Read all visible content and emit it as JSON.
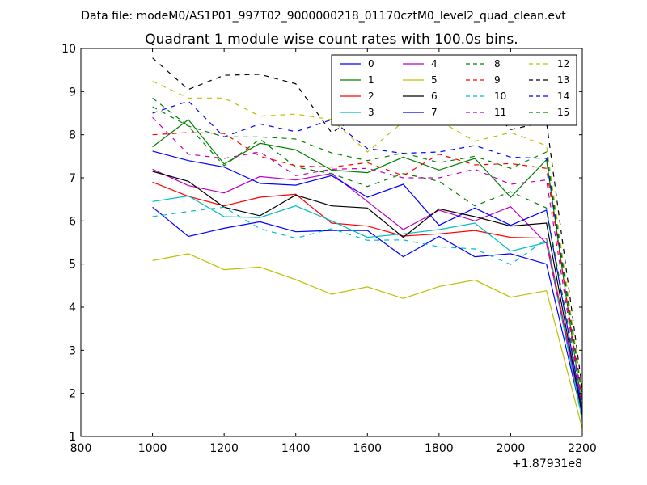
{
  "chart_data": {
    "type": "line",
    "suptitle": "Data file: modeM0/AS1P01_997T02_9000000218_01170cztM0_level2_quad_clean.evt",
    "title": "Quadrant 1 module wise count rates with 100.0s bins.",
    "xlabel": "",
    "ylabel": "",
    "x_offset_label": "+1.87931e8",
    "xlim": [
      800,
      2200
    ],
    "ylim": [
      1,
      10
    ],
    "xticks": [
      800,
      1000,
      1200,
      1400,
      1600,
      1800,
      2000,
      2200
    ],
    "yticks": [
      1,
      2,
      3,
      4,
      5,
      6,
      7,
      8,
      9,
      10
    ],
    "x": [
      1000,
      1100,
      1200,
      1300,
      1400,
      1500,
      1600,
      1700,
      1800,
      1900,
      2000,
      2100,
      2200
    ],
    "legend_position": "top-right",
    "series": [
      {
        "name": "0",
        "color": "#0000ff",
        "dash": "solid",
        "values": [
          6.32,
          5.64,
          5.83,
          5.98,
          5.75,
          5.78,
          5.78,
          5.17,
          5.64,
          5.17,
          5.24,
          5.0,
          1.45
        ]
      },
      {
        "name": "1",
        "color": "#008000",
        "dash": "solid",
        "values": [
          7.72,
          8.35,
          7.32,
          7.8,
          7.65,
          7.18,
          7.12,
          7.48,
          7.18,
          7.45,
          6.55,
          7.42,
          1.65
        ]
      },
      {
        "name": "2",
        "color": "#ff0000",
        "dash": "solid",
        "values": [
          6.9,
          6.57,
          6.35,
          6.55,
          6.62,
          5.95,
          5.88,
          5.65,
          5.7,
          5.78,
          5.62,
          5.6,
          1.52
        ]
      },
      {
        "name": "3",
        "color": "#00bfbf",
        "dash": "solid",
        "values": [
          6.45,
          6.58,
          6.1,
          6.08,
          6.35,
          6.0,
          5.62,
          5.7,
          5.8,
          5.95,
          5.3,
          5.5,
          1.4
        ]
      },
      {
        "name": "4",
        "color": "#bf00bf",
        "dash": "solid",
        "values": [
          7.2,
          6.82,
          6.65,
          7.03,
          6.95,
          7.1,
          6.45,
          5.8,
          6.25,
          6.0,
          6.33,
          5.48,
          1.55
        ]
      },
      {
        "name": "5",
        "color": "#bfbf00",
        "dash": "solid",
        "values": [
          5.08,
          5.24,
          4.87,
          4.93,
          4.64,
          4.3,
          4.47,
          4.2,
          4.48,
          4.63,
          4.23,
          4.38,
          1.18
        ]
      },
      {
        "name": "6",
        "color": "#000000",
        "dash": "solid",
        "values": [
          7.15,
          6.92,
          6.32,
          6.12,
          6.6,
          6.35,
          6.3,
          5.62,
          6.28,
          6.1,
          5.88,
          5.95,
          1.5
        ]
      },
      {
        "name": "7",
        "color": "#0000ff",
        "dash": "solid",
        "values": [
          7.62,
          7.4,
          7.25,
          6.87,
          6.83,
          7.05,
          6.55,
          6.85,
          5.9,
          6.3,
          5.9,
          6.25,
          1.6
        ]
      },
      {
        "name": "8",
        "color": "#008000",
        "dash": "dashed",
        "values": [
          8.85,
          8.2,
          7.28,
          7.9,
          7.25,
          7.1,
          6.8,
          7.1,
          6.92,
          6.35,
          6.68,
          6.3,
          1.78
        ]
      },
      {
        "name": "9",
        "color": "#ff0000",
        "dash": "dashed",
        "values": [
          8.0,
          8.05,
          8.03,
          7.5,
          7.28,
          7.25,
          7.35,
          7.05,
          7.55,
          7.3,
          7.33,
          7.22,
          1.82
        ]
      },
      {
        "name": "10",
        "color": "#00bfbf",
        "dash": "dashed",
        "values": [
          6.1,
          6.22,
          6.32,
          5.82,
          5.6,
          5.82,
          5.55,
          5.56,
          5.4,
          5.35,
          4.99,
          5.58,
          1.35
        ]
      },
      {
        "name": "11",
        "color": "#bf00bf",
        "dash": "dashed",
        "values": [
          8.4,
          7.55,
          7.45,
          7.6,
          7.05,
          7.2,
          7.22,
          7.0,
          7.0,
          7.2,
          6.85,
          6.95,
          1.7
        ]
      },
      {
        "name": "12",
        "color": "#bfbf00",
        "dash": "dashed",
        "values": [
          9.24,
          8.85,
          8.85,
          8.43,
          8.48,
          8.35,
          7.6,
          8.3,
          8.33,
          7.85,
          8.05,
          7.75,
          2.0
        ]
      },
      {
        "name": "13",
        "color": "#000000",
        "dash": "dashed",
        "values": [
          9.78,
          9.05,
          9.38,
          9.4,
          9.18,
          8.05,
          8.55,
          8.45,
          9.03,
          8.92,
          8.12,
          8.3,
          2.1
        ]
      },
      {
        "name": "14",
        "color": "#0000ff",
        "dash": "dashed",
        "values": [
          8.5,
          8.78,
          7.95,
          8.25,
          8.07,
          8.35,
          7.68,
          7.57,
          7.6,
          7.75,
          7.48,
          7.45,
          1.92
        ]
      },
      {
        "name": "15",
        "color": "#008000",
        "dash": "dashed",
        "values": [
          8.65,
          8.2,
          7.95,
          7.95,
          7.9,
          7.58,
          7.4,
          7.58,
          7.35,
          7.5,
          7.22,
          7.6,
          1.88
        ]
      }
    ]
  }
}
